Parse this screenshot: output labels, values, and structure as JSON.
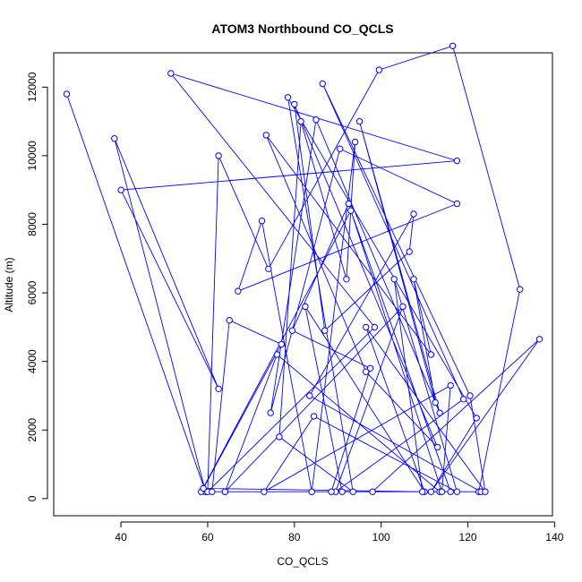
{
  "chart_data": {
    "type": "line",
    "title": "ATOM3 Northbound CO_QCLS",
    "xlabel": "CO_QCLS",
    "ylabel": "Altitude (m)",
    "xlim": [
      24.5,
      139.5
    ],
    "ylim": [
      -500,
      13000
    ],
    "x_ticks": [
      40,
      60,
      80,
      100,
      120,
      140
    ],
    "x_tick_labels": [
      "40",
      "60",
      "80",
      "100",
      "120",
      "140"
    ],
    "y_ticks": [
      0,
      2000,
      4000,
      6000,
      8000,
      10000,
      12000
    ],
    "y_tick_labels": [
      "0",
      "2000",
      "4000",
      "6000",
      "8000",
      "10000",
      "12000"
    ],
    "grid": false,
    "color": "#0000ff",
    "marker": "open-circle",
    "series": [
      {
        "x": [
          27.5,
          59.5,
          38.5,
          62.5,
          40.0,
          117.5,
          51.5,
          98.5,
          60.0,
          62.5,
          74.0,
          99.5,
          116.5,
          132.0,
          122.5,
          98.0,
          136.5,
          111.5,
          122.0,
          78.5,
          93.5,
          76.5,
          81.5,
          92.0,
          94.0,
          84.0,
          72.5,
          67.0,
          117.5,
          90.5,
          74.5,
          85.0,
          113.5,
          95.0,
          112.5,
          107.5,
          111.5,
          73.5,
          96.5,
          113.0,
          80.0,
          87.0,
          106.5,
          107.5,
          83.5,
          123.0,
          64.0,
          76.0,
          113.5,
          58.5,
          93.0,
          116.0,
          64.0,
          105.0,
          89.5,
          119.0,
          86.5,
          120.5,
          124.0,
          96.5,
          110.0,
          82.5,
          91.0,
          88.5,
          97.5,
          79.5,
          92.5,
          114.0,
          116.0,
          73.0,
          84.5,
          117.5,
          103.0,
          109.5,
          59.0,
          77.0,
          65.0,
          61.0
        ],
        "y": [
          11800,
          200,
          10500,
          3200,
          9000,
          9850,
          12400,
          5000,
          200,
          10000,
          6700,
          12500,
          13200,
          6100,
          200,
          200,
          4650,
          200,
          2350,
          11700,
          200,
          1800,
          11000,
          6400,
          10400,
          200,
          8100,
          6050,
          8600,
          10200,
          2500,
          11050,
          2500,
          11000,
          2800,
          6400,
          4200,
          10600,
          3700,
          1500,
          11500,
          4900,
          7200,
          8300,
          3000,
          200,
          200,
          4200,
          200,
          200,
          8400,
          200,
          200,
          5600,
          200,
          2900,
          12100,
          3000,
          200,
          5000,
          200,
          5600,
          200,
          200,
          3800,
          4900,
          8600,
          200,
          3300,
          200,
          2400,
          200,
          6400,
          200,
          300,
          4500,
          5200,
          200
        ]
      }
    ]
  }
}
